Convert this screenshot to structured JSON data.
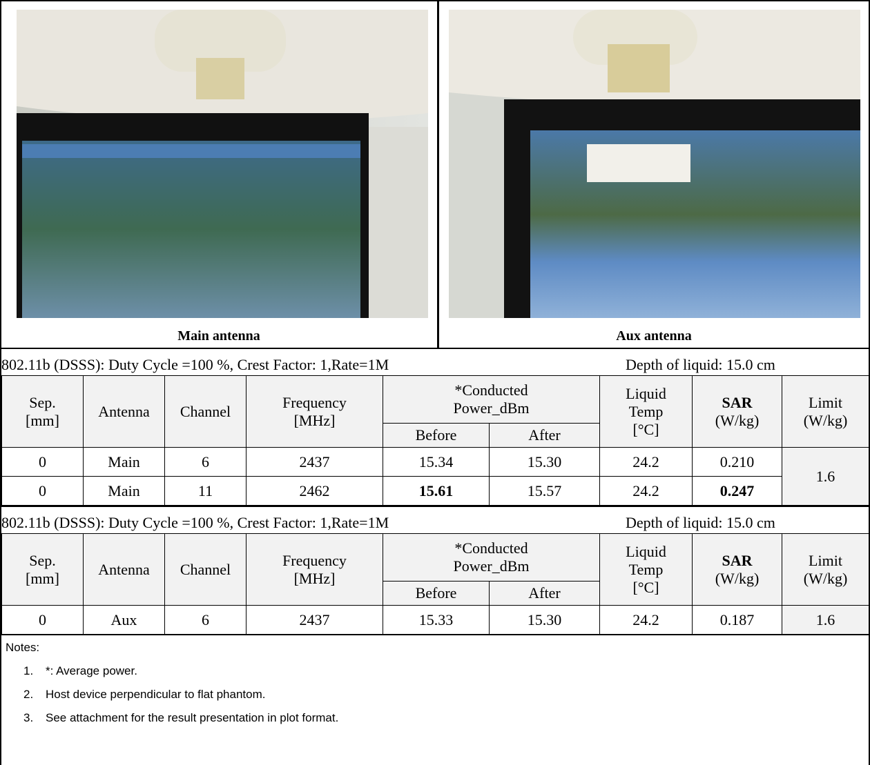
{
  "photos": [
    {
      "caption": "Main antenna"
    },
    {
      "caption": "Aux antenna"
    }
  ],
  "header": {
    "sep": [
      "Sep.",
      "[mm]"
    ],
    "antenna": [
      "Antenna"
    ],
    "channel": [
      "Channel"
    ],
    "frequency": [
      "Frequency",
      "[MHz]"
    ],
    "power": [
      "*Conducted",
      "Power_dBm"
    ],
    "before": [
      "Before"
    ],
    "after": [
      "After"
    ],
    "temp": [
      "Liquid",
      "Temp",
      "[°C]"
    ],
    "sar": [
      "SAR",
      "(W/kg)"
    ],
    "limit": [
      "Limit",
      "(W/kg)"
    ]
  },
  "tables": [
    {
      "condition": "802.11b (DSSS): Duty Cycle =100 %, Crest Factor: 1,Rate=1M",
      "depth": "Depth of liquid: 15.0 cm",
      "rows": [
        [
          "0",
          "Main",
          "6",
          "2437",
          "15.34",
          "15.30",
          "24.2",
          "0.210"
        ],
        [
          "0",
          "Main",
          "11",
          "2462",
          "15.61",
          "15.57",
          "24.2",
          "0.247"
        ]
      ],
      "bold_cells": [
        [
          1,
          4
        ],
        [
          1,
          7
        ]
      ],
      "limit": "1.6"
    },
    {
      "condition": "802.11b (DSSS): Duty Cycle =100 %, Crest Factor: 1,Rate=1M",
      "depth": "Depth of liquid: 15.0 cm",
      "rows": [
        [
          "0",
          "Aux",
          "6",
          "2437",
          "15.33",
          "15.30",
          "24.2",
          "0.187"
        ]
      ],
      "bold_cells": [],
      "limit": "1.6"
    }
  ],
  "notes": {
    "title": "Notes:",
    "items": [
      {
        "number": "1.",
        "text": "*: Average power."
      },
      {
        "number": "2.",
        "text": "Host device perpendicular to flat  phantom."
      },
      {
        "number": "3.",
        "text": "See attachment for the result presentation in plot format."
      }
    ]
  }
}
